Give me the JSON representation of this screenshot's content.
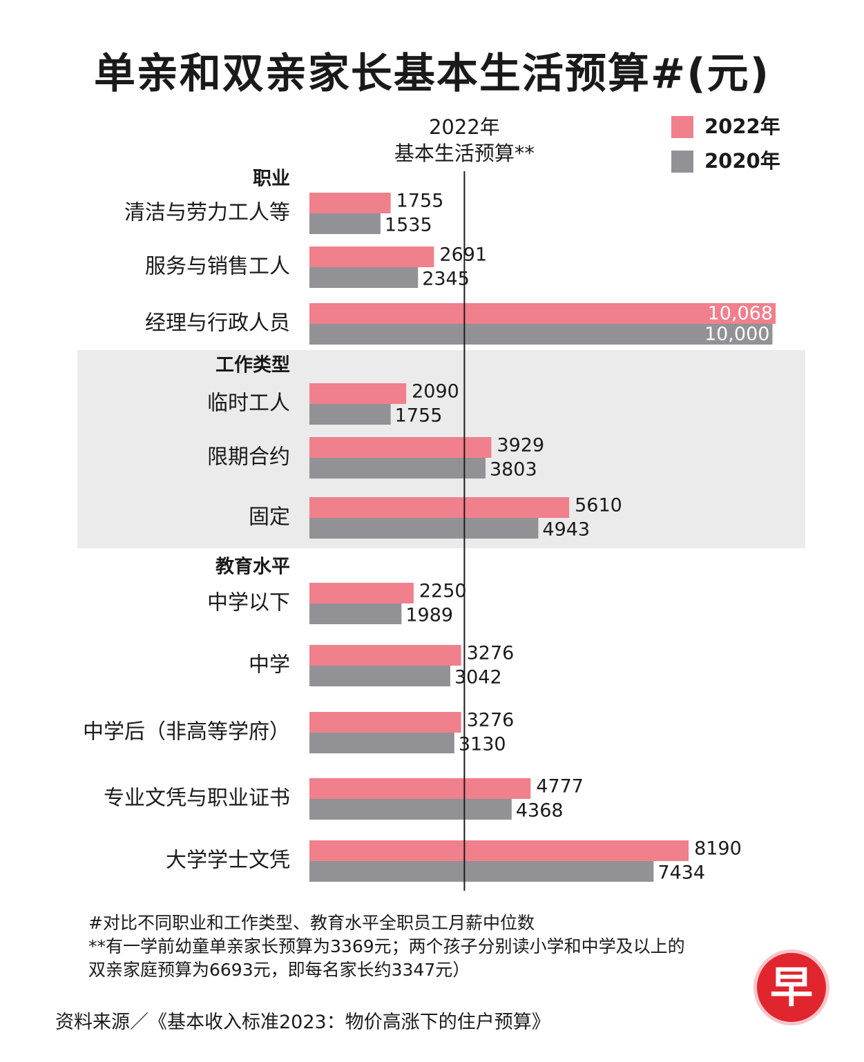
{
  "chart_data": {
    "type": "bar",
    "orientation": "horizontal",
    "title": "单亲和双亲家长基本生活预算#(元)",
    "reference_line": {
      "label_line1": "2022年",
      "label_line2": "基本生活预算**",
      "value": 3347
    },
    "legend": [
      {
        "name": "2022年",
        "color": "#f0808c"
      },
      {
        "name": "2020年",
        "color": "#929296"
      }
    ],
    "series_names": [
      "2022年",
      "2020年"
    ],
    "groups": [
      {
        "name": "职业",
        "shaded": false,
        "items": [
          {
            "label": "清洁与劳力工人等",
            "v2022": 1755,
            "v2020": 1535,
            "t2022": "1755",
            "t2020": "1535"
          },
          {
            "label": "服务与销售工人",
            "v2022": 2691,
            "v2020": 2345,
            "t2022": "2691",
            "t2020": "2345"
          },
          {
            "label": "经理与行政人员",
            "v2022": 10068,
            "v2020": 10000,
            "t2022": "10,068",
            "t2020": "10,000"
          }
        ]
      },
      {
        "name": "工作类型",
        "shaded": true,
        "items": [
          {
            "label": "临时工人",
            "v2022": 2090,
            "v2020": 1755,
            "t2022": "2090",
            "t2020": "1755"
          },
          {
            "label": "限期合约",
            "v2022": 3929,
            "v2020": 3803,
            "t2022": "3929",
            "t2020": "3803"
          },
          {
            "label": "固定",
            "v2022": 5610,
            "v2020": 4943,
            "t2022": "5610",
            "t2020": "4943"
          }
        ]
      },
      {
        "name": "教育水平",
        "shaded": false,
        "items": [
          {
            "label": "中学以下",
            "v2022": 2250,
            "v2020": 1989,
            "t2022": "2250",
            "t2020": "1989"
          },
          {
            "label": "中学",
            "v2022": 3276,
            "v2020": 3042,
            "t2022": "3276",
            "t2020": "3042"
          },
          {
            "label": "中学后（非高等学府）",
            "v2022": 3276,
            "v2020": 3130,
            "t2022": "3276",
            "t2020": "3130"
          },
          {
            "label": "专业文凭与职业证书",
            "v2022": 4777,
            "v2020": 4368,
            "t2022": "4777",
            "t2020": "4368"
          },
          {
            "label": "大学学士文凭",
            "v2022": 8190,
            "v2020": 7434,
            "t2022": "8190",
            "t2020": "7434"
          }
        ]
      }
    ],
    "xlim": [
      0,
      10068
    ]
  },
  "footnotes": {
    "note1": "#对比不同职业和工作类型、教育水平全职员工月薪中位数",
    "note2": "**有一学前幼童单亲家长预算为3369元；两个孩子分别读小学和中学及以上的",
    "note3": "双亲家庭预算为6693元，即每名家长约3347元）"
  },
  "source": "资料来源／《基本收入标准2023：物价高涨下的住户预算》",
  "logo_text": "早"
}
